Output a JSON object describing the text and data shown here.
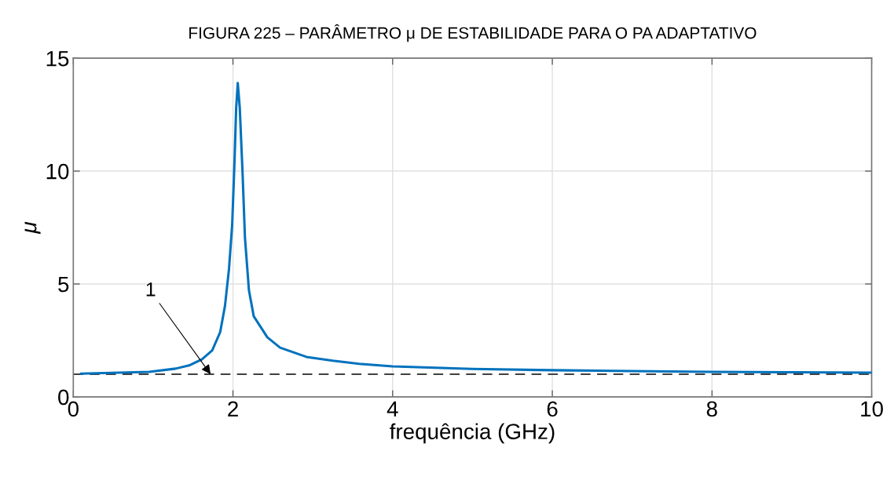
{
  "chart_data": {
    "type": "line",
    "title": "FIGURA 225 – PARÂMETRO μ DE ESTABILIDADE PARA O PA ADAPTATIVO",
    "xlabel": "frequência (GHz)",
    "ylabel": "μ",
    "xlim": [
      0,
      10
    ],
    "xticks": [
      0,
      2,
      4,
      6,
      8,
      10
    ],
    "ylim": [
      0,
      15
    ],
    "yticks": [
      0,
      5,
      10,
      15
    ],
    "grid": true,
    "line_style": "solid",
    "series": [
      {
        "color": "#0072bd",
        "x": [
          0.1,
          0.95,
          1.28,
          1.45,
          1.61,
          1.74,
          1.84,
          1.9,
          1.95,
          1.99,
          2.02,
          2.04,
          2.06,
          2.085,
          2.12,
          2.15,
          2.2,
          2.26,
          2.43,
          2.59,
          2.92,
          3.25,
          3.58,
          4.0,
          5.0,
          6.0,
          7.0,
          8.0,
          9.0,
          10.0
        ],
        "values": [
          1.03,
          1.11,
          1.25,
          1.39,
          1.66,
          2.06,
          2.87,
          4.03,
          5.66,
          7.62,
          10.5,
          12.8,
          13.9,
          12.8,
          9.93,
          7.05,
          4.72,
          3.57,
          2.64,
          2.18,
          1.77,
          1.6,
          1.46,
          1.35,
          1.24,
          1.18,
          1.14,
          1.11,
          1.09,
          1.07
        ]
      }
    ],
    "ref_lines": [
      {
        "axis": "y",
        "value": 1,
        "color": "#404040",
        "line_style": "dashed"
      }
    ],
    "annotations": [
      {
        "text": "1",
        "x": 1.72,
        "y": 1
      }
    ]
  }
}
